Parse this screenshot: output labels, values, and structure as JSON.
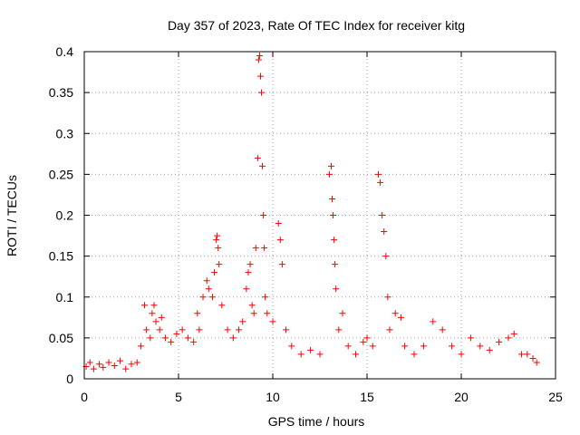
{
  "chart_data": {
    "type": "scatter",
    "title": "Day 357 of 2023, Rate Of TEC Index for receiver kitg",
    "xlabel": "GPS time / hours",
    "ylabel": "ROTI / TECUs",
    "xlim": [
      0,
      25
    ],
    "ylim": [
      0,
      0.4
    ],
    "xticks": [
      "0",
      "5",
      "10",
      "15",
      "20",
      "25"
    ],
    "yticks": [
      "0",
      "0.05",
      "0.1",
      "0.15",
      "0.2",
      "0.25",
      "0.3",
      "0.35",
      "0.4"
    ],
    "grid": true,
    "marker": "+",
    "color": "#ff0000",
    "series": [
      {
        "name": "ROTI",
        "points": [
          [
            0.1,
            0.015
          ],
          [
            0.3,
            0.02
          ],
          [
            0.5,
            0.012
          ],
          [
            0.8,
            0.018
          ],
          [
            1.0,
            0.014
          ],
          [
            1.3,
            0.02
          ],
          [
            1.6,
            0.016
          ],
          [
            1.9,
            0.022
          ],
          [
            2.2,
            0.012
          ],
          [
            2.5,
            0.018
          ],
          [
            2.8,
            0.02
          ],
          [
            3.0,
            0.04
          ],
          [
            3.2,
            0.09
          ],
          [
            3.3,
            0.06
          ],
          [
            3.5,
            0.05
          ],
          [
            3.6,
            0.08
          ],
          [
            3.7,
            0.09
          ],
          [
            3.8,
            0.07
          ],
          [
            4.0,
            0.06
          ],
          [
            4.1,
            0.075
          ],
          [
            4.3,
            0.05
          ],
          [
            4.6,
            0.045
          ],
          [
            4.9,
            0.055
          ],
          [
            5.2,
            0.06
          ],
          [
            5.5,
            0.05
          ],
          [
            5.8,
            0.045
          ],
          [
            6.0,
            0.08
          ],
          [
            6.1,
            0.06
          ],
          [
            6.3,
            0.1
          ],
          [
            6.5,
            0.12
          ],
          [
            6.6,
            0.11
          ],
          [
            6.8,
            0.1
          ],
          [
            6.9,
            0.13
          ],
          [
            7.0,
            0.17
          ],
          [
            7.05,
            0.175
          ],
          [
            7.1,
            0.16
          ],
          [
            7.15,
            0.14
          ],
          [
            7.3,
            0.09
          ],
          [
            7.6,
            0.06
          ],
          [
            7.9,
            0.05
          ],
          [
            8.2,
            0.06
          ],
          [
            8.4,
            0.07
          ],
          [
            8.6,
            0.11
          ],
          [
            8.7,
            0.13
          ],
          [
            8.8,
            0.14
          ],
          [
            8.9,
            0.09
          ],
          [
            9.0,
            0.08
          ],
          [
            9.1,
            0.16
          ],
          [
            9.2,
            0.27
          ],
          [
            9.25,
            0.39
          ],
          [
            9.3,
            0.395
          ],
          [
            9.35,
            0.37
          ],
          [
            9.4,
            0.35
          ],
          [
            9.45,
            0.26
          ],
          [
            9.5,
            0.2
          ],
          [
            9.55,
            0.16
          ],
          [
            9.6,
            0.1
          ],
          [
            9.7,
            0.08
          ],
          [
            10.0,
            0.07
          ],
          [
            10.3,
            0.19
          ],
          [
            10.4,
            0.17
          ],
          [
            10.5,
            0.14
          ],
          [
            10.7,
            0.06
          ],
          [
            11.0,
            0.04
          ],
          [
            11.5,
            0.03
          ],
          [
            12.0,
            0.035
          ],
          [
            12.5,
            0.03
          ],
          [
            13.0,
            0.25
          ],
          [
            13.1,
            0.26
          ],
          [
            13.15,
            0.22
          ],
          [
            13.2,
            0.2
          ],
          [
            13.25,
            0.17
          ],
          [
            13.3,
            0.14
          ],
          [
            13.35,
            0.11
          ],
          [
            13.5,
            0.06
          ],
          [
            13.7,
            0.08
          ],
          [
            14.0,
            0.04
          ],
          [
            14.4,
            0.03
          ],
          [
            14.8,
            0.045
          ],
          [
            15.0,
            0.05
          ],
          [
            15.3,
            0.04
          ],
          [
            15.6,
            0.25
          ],
          [
            15.7,
            0.24
          ],
          [
            15.8,
            0.2
          ],
          [
            15.9,
            0.18
          ],
          [
            16.0,
            0.15
          ],
          [
            16.1,
            0.1
          ],
          [
            16.2,
            0.06
          ],
          [
            16.5,
            0.08
          ],
          [
            16.8,
            0.075
          ],
          [
            17.0,
            0.04
          ],
          [
            17.5,
            0.03
          ],
          [
            18.0,
            0.04
          ],
          [
            18.5,
            0.07
          ],
          [
            19.0,
            0.06
          ],
          [
            19.5,
            0.04
          ],
          [
            20.0,
            0.03
          ],
          [
            20.5,
            0.05
          ],
          [
            21.0,
            0.04
          ],
          [
            21.5,
            0.035
          ],
          [
            22.0,
            0.045
          ],
          [
            22.5,
            0.05
          ],
          [
            22.8,
            0.055
          ],
          [
            23.2,
            0.03
          ],
          [
            23.5,
            0.03
          ],
          [
            23.8,
            0.025
          ],
          [
            24.0,
            0.02
          ]
        ]
      }
    ]
  }
}
